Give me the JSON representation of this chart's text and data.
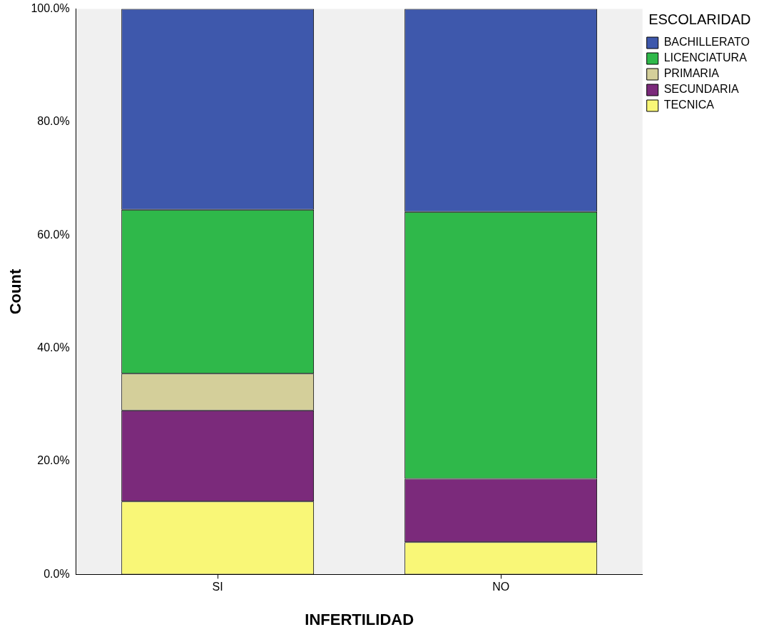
{
  "chart_data": {
    "type": "bar",
    "xlabel": "INFERTILIDAD",
    "ylabel": "Count",
    "legend_title": "ESCOLARIDAD",
    "categories": [
      "SI",
      "NO"
    ],
    "stacked": true,
    "series": [
      {
        "name": "TECNICA",
        "color": "#f9f777",
        "values": [
          12.9,
          5.7
        ]
      },
      {
        "name": "SECUNDARIA",
        "color": "#7b2a7b",
        "values": [
          16.1,
          11.2
        ]
      },
      {
        "name": "PRIMARIA",
        "color": "#d4cf9a",
        "values": [
          6.5,
          0
        ]
      },
      {
        "name": "LICENCIATURA",
        "color": "#2fb84a",
        "values": [
          29.0,
          47.2
        ]
      },
      {
        "name": "BACHILLERATO",
        "color": "#3e58ac",
        "values": [
          35.5,
          35.9
        ]
      }
    ],
    "ylim": [
      0,
      100
    ],
    "yticks": [
      {
        "value": 0,
        "label": "0.0%"
      },
      {
        "value": 20,
        "label": "20.0%"
      },
      {
        "value": 40,
        "label": "40.0%"
      },
      {
        "value": 60,
        "label": "60.0%"
      },
      {
        "value": 80,
        "label": "80.0%"
      },
      {
        "value": 100,
        "label": "100.0%"
      }
    ],
    "grid": false,
    "legend": "top right"
  }
}
